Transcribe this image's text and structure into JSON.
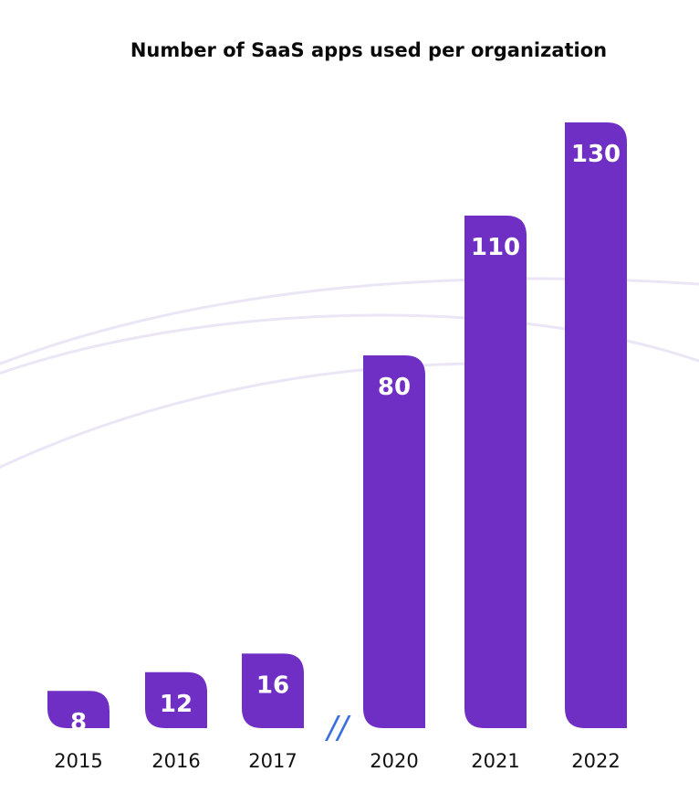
{
  "chart_data": {
    "type": "bar",
    "title": "Number of SaaS apps used per organization",
    "categories": [
      "2015",
      "2016",
      "2017",
      "2020",
      "2021",
      "2022"
    ],
    "values": [
      8,
      12,
      16,
      80,
      110,
      130
    ],
    "axis_break_after": "2017",
    "axis_break_symbol": "//",
    "colors": {
      "bar": "#6f2fc4",
      "bar_label": "#ffffff",
      "decor_arc": "#ebe6f6",
      "break_mark": "#3b6fe0"
    },
    "grid": false,
    "legend": "none"
  }
}
